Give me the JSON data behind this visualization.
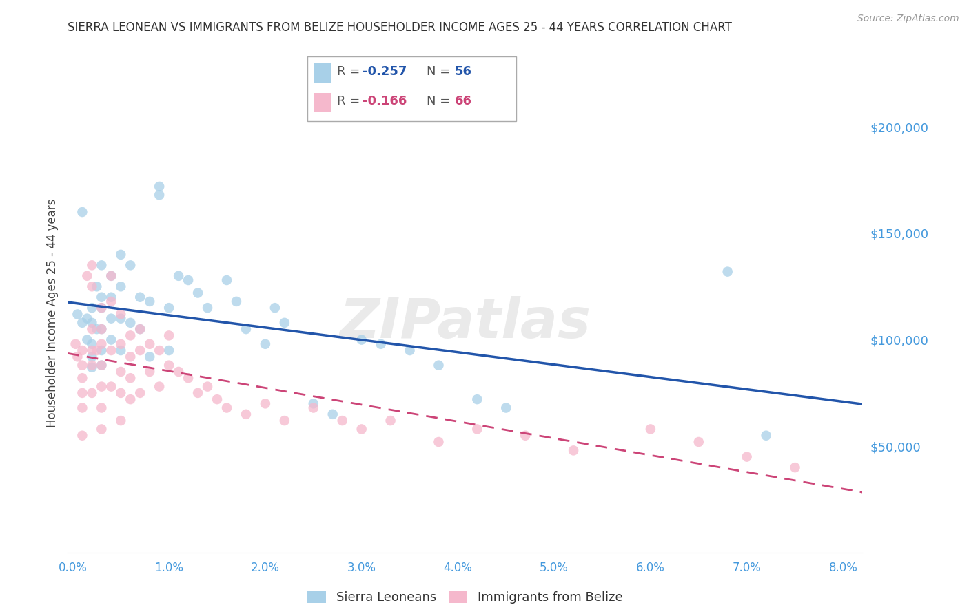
{
  "title": "SIERRA LEONEAN VS IMMIGRANTS FROM BELIZE HOUSEHOLDER INCOME AGES 25 - 44 YEARS CORRELATION CHART",
  "source": "Source: ZipAtlas.com",
  "ylabel": "Householder Income Ages 25 - 44 years",
  "xlabel_ticks": [
    "0.0%",
    "1.0%",
    "2.0%",
    "3.0%",
    "4.0%",
    "5.0%",
    "6.0%",
    "7.0%",
    "8.0%"
  ],
  "xlabel_vals": [
    0.0,
    0.01,
    0.02,
    0.03,
    0.04,
    0.05,
    0.06,
    0.07,
    0.08
  ],
  "ytick_labels": [
    "$50,000",
    "$100,000",
    "$150,000",
    "$200,000"
  ],
  "ytick_vals": [
    50000,
    100000,
    150000,
    200000
  ],
  "ylim": [
    0,
    225000
  ],
  "xlim": [
    -0.0005,
    0.082
  ],
  "legend1_r": "-0.257",
  "legend1_n": "56",
  "legend2_r": "-0.166",
  "legend2_n": "66",
  "blue_color": "#a8d0e8",
  "blue_line_color": "#2255aa",
  "pink_color": "#f5b8cc",
  "pink_line_color": "#cc4477",
  "grid_color": "#cccccc",
  "title_color": "#333333",
  "right_axis_color": "#4499dd",
  "watermark": "ZIPatlas",
  "sierra_x": [
    0.0005,
    0.001,
    0.001,
    0.0015,
    0.0015,
    0.002,
    0.002,
    0.002,
    0.002,
    0.002,
    0.0025,
    0.0025,
    0.003,
    0.003,
    0.003,
    0.003,
    0.003,
    0.003,
    0.004,
    0.004,
    0.004,
    0.004,
    0.005,
    0.005,
    0.005,
    0.005,
    0.006,
    0.006,
    0.007,
    0.007,
    0.008,
    0.008,
    0.009,
    0.009,
    0.01,
    0.01,
    0.011,
    0.012,
    0.013,
    0.014,
    0.016,
    0.017,
    0.018,
    0.02,
    0.021,
    0.022,
    0.025,
    0.027,
    0.03,
    0.032,
    0.035,
    0.038,
    0.042,
    0.045,
    0.068,
    0.072
  ],
  "sierra_y": [
    112000,
    108000,
    160000,
    110000,
    100000,
    115000,
    108000,
    98000,
    92000,
    87000,
    125000,
    105000,
    135000,
    120000,
    115000,
    105000,
    95000,
    88000,
    130000,
    120000,
    110000,
    100000,
    140000,
    125000,
    110000,
    95000,
    135000,
    108000,
    120000,
    105000,
    118000,
    92000,
    172000,
    168000,
    115000,
    95000,
    130000,
    128000,
    122000,
    115000,
    128000,
    118000,
    105000,
    98000,
    115000,
    108000,
    70000,
    65000,
    100000,
    98000,
    95000,
    88000,
    72000,
    68000,
    132000,
    55000
  ],
  "belize_x": [
    0.0003,
    0.0005,
    0.001,
    0.001,
    0.001,
    0.001,
    0.001,
    0.001,
    0.0015,
    0.002,
    0.002,
    0.002,
    0.002,
    0.002,
    0.002,
    0.0025,
    0.003,
    0.003,
    0.003,
    0.003,
    0.003,
    0.003,
    0.003,
    0.004,
    0.004,
    0.004,
    0.004,
    0.005,
    0.005,
    0.005,
    0.005,
    0.005,
    0.006,
    0.006,
    0.006,
    0.006,
    0.007,
    0.007,
    0.007,
    0.008,
    0.008,
    0.009,
    0.009,
    0.01,
    0.01,
    0.011,
    0.012,
    0.013,
    0.014,
    0.015,
    0.016,
    0.018,
    0.02,
    0.022,
    0.025,
    0.028,
    0.03,
    0.033,
    0.038,
    0.042,
    0.047,
    0.052,
    0.06,
    0.065,
    0.07,
    0.075
  ],
  "belize_y": [
    98000,
    92000,
    95000,
    88000,
    82000,
    75000,
    68000,
    55000,
    130000,
    135000,
    125000,
    105000,
    95000,
    88000,
    75000,
    95000,
    115000,
    105000,
    98000,
    88000,
    78000,
    68000,
    58000,
    130000,
    118000,
    95000,
    78000,
    112000,
    98000,
    85000,
    75000,
    62000,
    102000,
    92000,
    82000,
    72000,
    105000,
    95000,
    75000,
    98000,
    85000,
    95000,
    78000,
    102000,
    88000,
    85000,
    82000,
    75000,
    78000,
    72000,
    68000,
    65000,
    70000,
    62000,
    68000,
    62000,
    58000,
    62000,
    52000,
    58000,
    55000,
    48000,
    58000,
    52000,
    45000,
    40000
  ]
}
